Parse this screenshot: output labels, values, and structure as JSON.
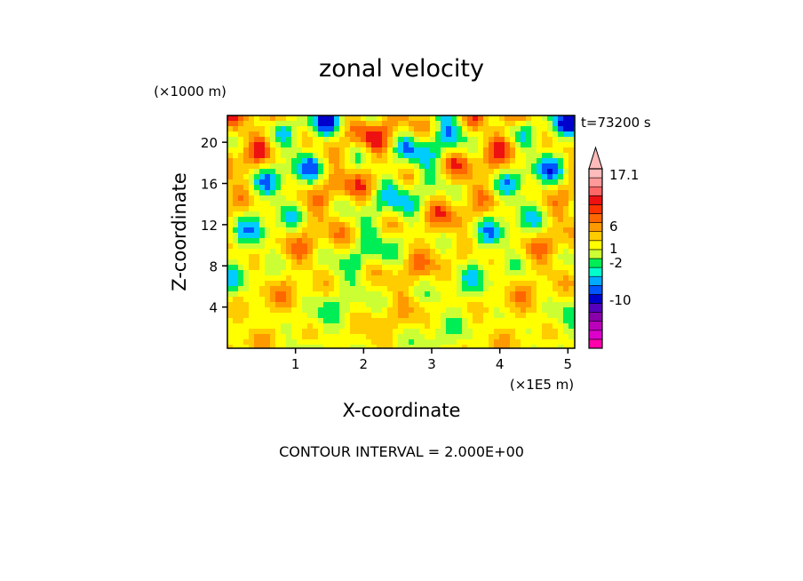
{
  "chart_data": {
    "type": "heatmap",
    "title": "zonal velocity",
    "xlabel": "X-coordinate",
    "ylabel": "Z-coordinate",
    "x_scale_note": "(×1E5 m)",
    "y_scale_note": "(×1000 m)",
    "time_label": "t=73200 s",
    "footer": "CONTOUR INTERVAL = 2.000E+00",
    "xlim": [
      0,
      5.1
    ],
    "ylim": [
      0,
      22.6
    ],
    "x_ticks": [
      {
        "v": 1,
        "label": "1"
      },
      {
        "v": 2,
        "label": "2"
      },
      {
        "v": 3,
        "label": "3"
      },
      {
        "v": 4,
        "label": "4"
      },
      {
        "v": 5,
        "label": "5"
      }
    ],
    "y_ticks": [
      {
        "v": 4,
        "label": "4"
      },
      {
        "v": 8,
        "label": "8"
      },
      {
        "v": 12,
        "label": "12"
      },
      {
        "v": 16,
        "label": "16"
      },
      {
        "v": 20,
        "label": "20"
      }
    ],
    "colorbar": {
      "levels": [
        {
          "color": "#ff00aa"
        },
        {
          "color": "#dd00cc"
        },
        {
          "color": "#bb00bb"
        },
        {
          "color": "#8800aa"
        },
        {
          "color": "#5500bb"
        },
        {
          "color": "#0000cc"
        },
        {
          "color": "#0055ff"
        },
        {
          "color": "#00aaff"
        },
        {
          "color": "#00ffcc"
        },
        {
          "color": "#00ee55"
        },
        {
          "color": "#ccff33"
        },
        {
          "color": "#ffff00"
        },
        {
          "color": "#ffcc00"
        },
        {
          "color": "#ff9900"
        },
        {
          "color": "#ff6600"
        },
        {
          "color": "#ff3300"
        },
        {
          "color": "#ee1111"
        },
        {
          "color": "#ff6666"
        },
        {
          "color": "#ff9999"
        },
        {
          "color": "#ffbbbb"
        }
      ],
      "labels": [
        "17.1",
        "6",
        "1",
        "-2",
        "-10"
      ]
    },
    "field": {
      "palette": [
        "#0000cc",
        "#0055ff",
        "#00ccff",
        "#00ee55",
        "#ccff33",
        "#ffff00",
        "#ffcc00",
        "#ff9900",
        "#ff6600",
        "#ee1111"
      ]
    }
  }
}
